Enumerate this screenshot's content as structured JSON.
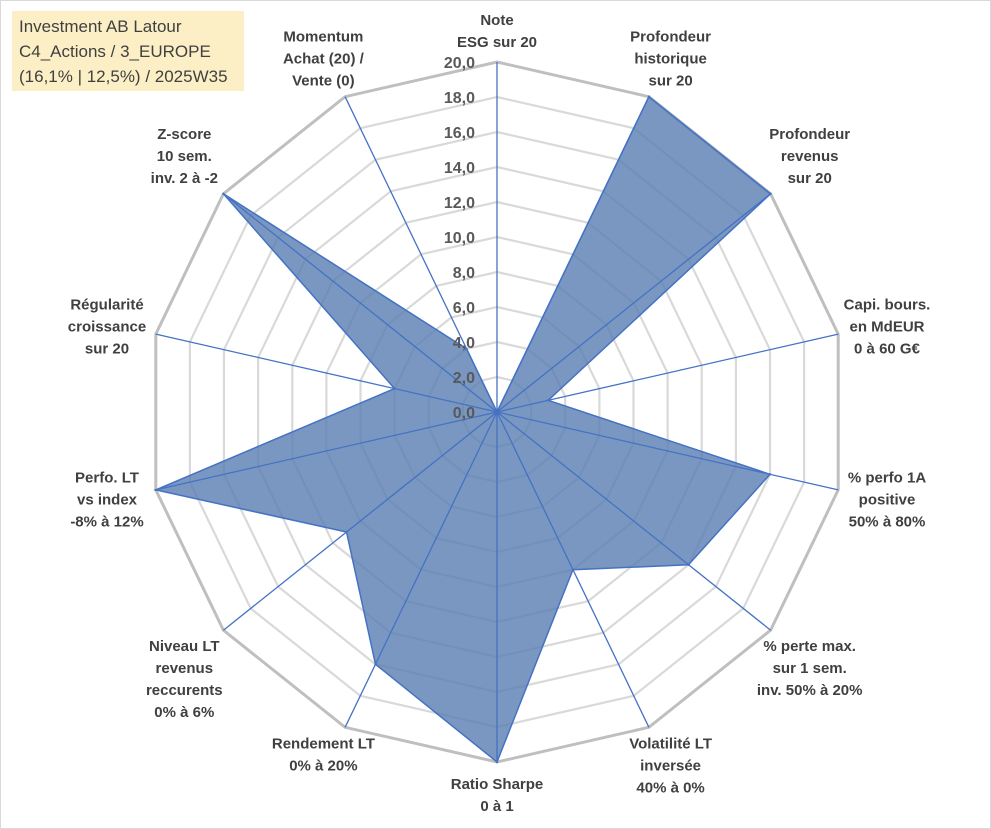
{
  "header": {
    "line1": "Investment AB Latour",
    "line2": "C4_Actions / 3_EUROPE",
    "line3": "(16,1% | 12,5%) / 2025W35"
  },
  "chart_data": {
    "type": "radar",
    "title": "",
    "rmax": 20,
    "ticks": [
      "0,0",
      "2,0",
      "4,0",
      "6,0",
      "8,0",
      "10,0",
      "12,0",
      "14,0",
      "16,0",
      "18,0",
      "20,0"
    ],
    "axes": [
      {
        "label": [
          "Note",
          "ESG sur 20"
        ],
        "value": 0
      },
      {
        "label": [
          "Profondeur",
          "historique",
          "sur 20"
        ],
        "value": 20
      },
      {
        "label": [
          "Profondeur",
          "revenus",
          "sur 20"
        ],
        "value": 20
      },
      {
        "label": [
          "Capi. bours.",
          "en MdEUR",
          "0 à 60 G€"
        ],
        "value": 3
      },
      {
        "label": [
          "% perfo 1A",
          "positive",
          "50% à 80%"
        ],
        "value": 16
      },
      {
        "label": [
          "% perte max.",
          "sur 1 sem.",
          "inv. 50% à 20%"
        ],
        "value": 14
      },
      {
        "label": [
          "Volatilité LT",
          "inversée",
          "40% à 0%"
        ],
        "value": 10
      },
      {
        "label": [
          "Ratio Sharpe",
          "0 à 1"
        ],
        "value": 20
      },
      {
        "label": [
          "Rendement LT",
          "0% à 20%"
        ],
        "value": 16
      },
      {
        "label": [
          "Niveau LT",
          "revenus",
          "reccurents",
          "0% à 6%"
        ],
        "value": 11
      },
      {
        "label": [
          "Perfo. LT",
          "vs index",
          "-8% à 12%"
        ],
        "value": 20
      },
      {
        "label": [
          "Régularité",
          "croissance",
          "sur 20"
        ],
        "value": 6
      },
      {
        "label": [
          "Z-score",
          "10 sem.",
          "inv. 2 à -2"
        ],
        "value": 20
      },
      {
        "label": [
          "Momentum",
          "Achat (20) /",
          "Vente (0)"
        ],
        "value": 4
      }
    ],
    "series": [
      {
        "values": [
          0,
          20,
          20,
          3,
          16,
          14,
          10,
          20,
          16,
          11,
          20,
          6,
          20,
          4
        ],
        "color": "#5b80b2"
      }
    ],
    "colors": {
      "fill": "#5b80b2",
      "stroke": "#4472c4",
      "spoke": "#4472c4",
      "grid_outer": "#bfbfbf",
      "grid_inner": "#d9d9d9"
    }
  }
}
